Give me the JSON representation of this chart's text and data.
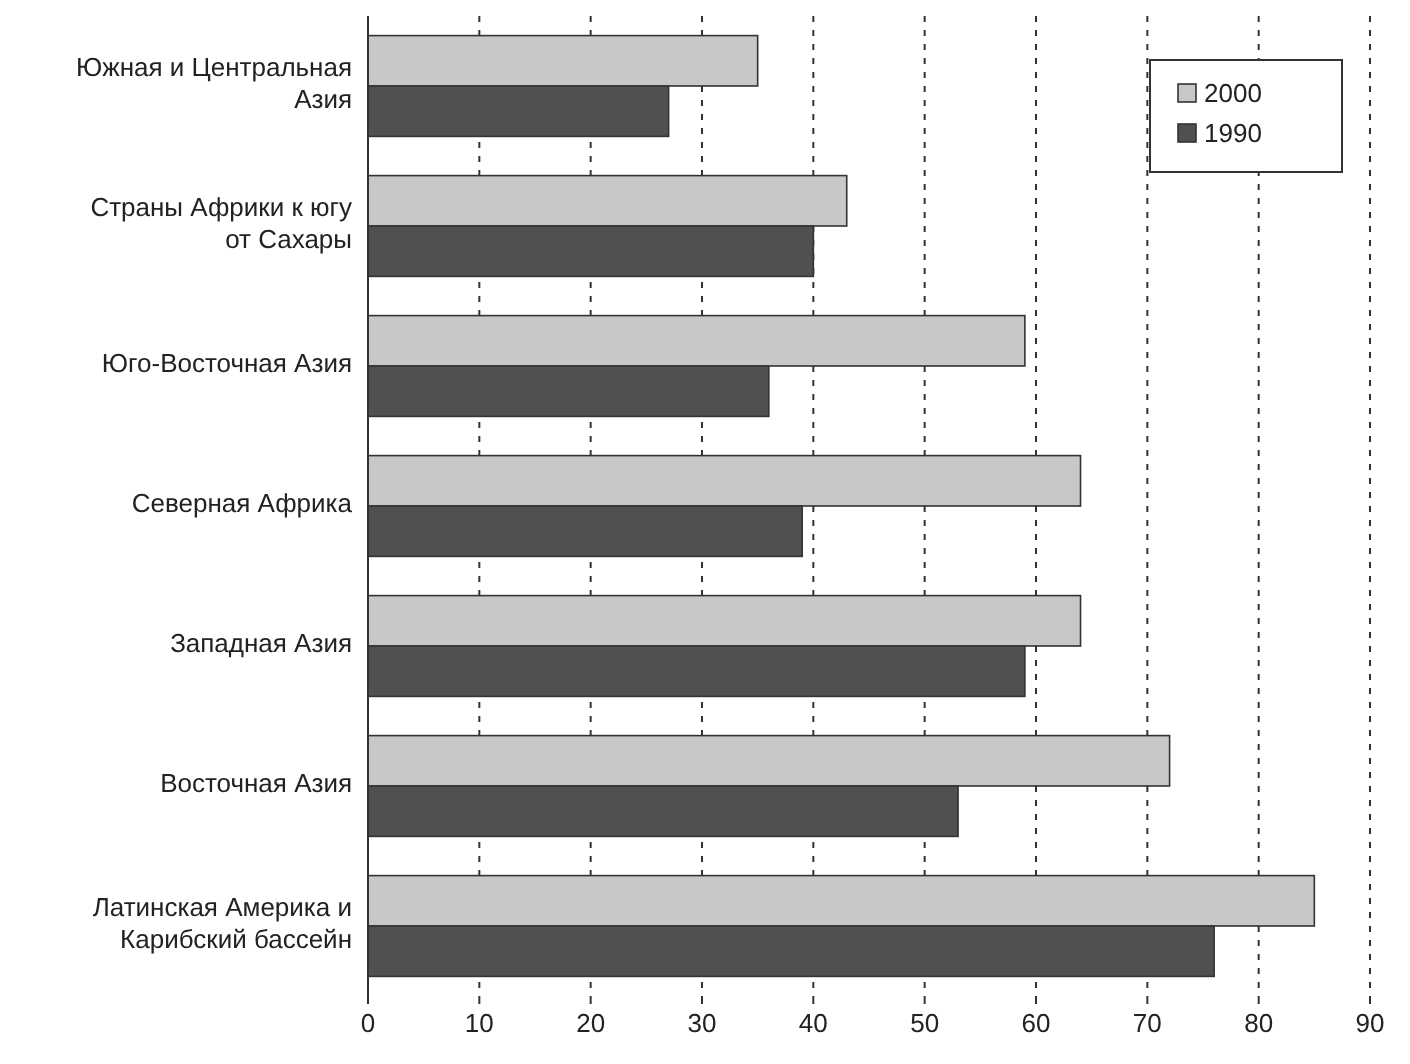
{
  "chart_data": {
    "type": "bar",
    "orientation": "horizontal",
    "categories": [
      "Южная и Центральная Азия",
      "Страны Африки к югу от Сахары",
      "Юго-Восточная Азия",
      "Северная Африка",
      "Западная Азия",
      "Восточная Азия",
      "Латинская Америка и Карибский бассейн"
    ],
    "series": [
      {
        "name": "2000",
        "color": "#c8c8c8",
        "values": [
          35,
          43,
          59,
          64,
          64,
          72,
          85
        ]
      },
      {
        "name": "1990",
        "color": "#505050",
        "values": [
          27,
          40,
          36,
          39,
          59,
          53,
          76
        ]
      }
    ],
    "xlim": [
      0,
      90
    ],
    "xticks": [
      0,
      10,
      20,
      30,
      40,
      50,
      60,
      70,
      80,
      90
    ],
    "grid": "x",
    "legend": "top right"
  }
}
